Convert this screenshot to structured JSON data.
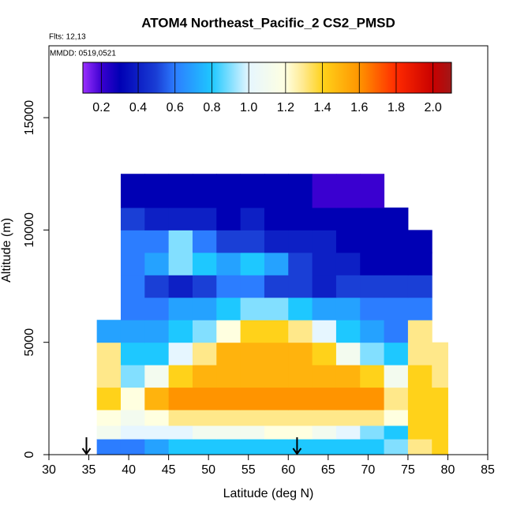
{
  "chart_data": {
    "type": "heatmap",
    "title": "ATOM4 Northeast_Pacific_2 CS2_PMSD",
    "subtitle": "Flts: 12,13",
    "annotation": "MMDD: 0519,0521",
    "x_label": "Latitude (deg N)",
    "y_label": "Altitude (m)",
    "xlim": [
      30,
      85
    ],
    "ylim": [
      0,
      18200
    ],
    "xticks": [
      30,
      35,
      40,
      45,
      50,
      55,
      60,
      65,
      70,
      75,
      80,
      85
    ],
    "yticks": [
      0,
      5000,
      10000,
      15000
    ],
    "x_bins": [
      36,
      39,
      42,
      45,
      48,
      51,
      54,
      57,
      60,
      63,
      66,
      69,
      72,
      75,
      78,
      80
    ],
    "y_bins": [
      0,
      700,
      1300,
      2000,
      3000,
      4000,
      5000,
      6000,
      7000,
      8000,
      9000,
      10000,
      11000,
      12500
    ],
    "values": [
      [
        0.6,
        0.6,
        0.7,
        0.8,
        0.8,
        0.8,
        0.8,
        0.8,
        0.8,
        0.8,
        0.8,
        0.8,
        0.9,
        1.3,
        1.4
      ],
      [
        1.1,
        1.0,
        1.0,
        1.0,
        1.1,
        1.1,
        1.1,
        1.2,
        1.2,
        1.1,
        1.0,
        0.9,
        0.8,
        1.4,
        1.4
      ],
      [
        1.2,
        1.1,
        1.2,
        1.3,
        1.3,
        1.3,
        1.3,
        1.3,
        1.3,
        1.3,
        1.3,
        1.3,
        1.2,
        1.4,
        1.4
      ],
      [
        1.4,
        1.2,
        1.5,
        1.6,
        1.6,
        1.6,
        1.6,
        1.6,
        1.6,
        1.6,
        1.6,
        1.6,
        1.3,
        1.4,
        1.4
      ],
      [
        1.3,
        0.9,
        1.1,
        1.4,
        1.5,
        1.5,
        1.5,
        1.5,
        1.5,
        1.5,
        1.5,
        1.4,
        1.1,
        1.4,
        1.3
      ],
      [
        1.3,
        0.8,
        0.8,
        1.0,
        1.3,
        1.5,
        1.5,
        1.5,
        1.5,
        1.4,
        1.1,
        0.9,
        0.8,
        1.3,
        1.3
      ],
      [
        0.7,
        0.7,
        0.7,
        0.8,
        0.9,
        1.2,
        1.4,
        1.4,
        1.3,
        1.0,
        0.8,
        0.7,
        0.6,
        1.3,
        null
      ],
      [
        null,
        0.6,
        0.6,
        0.7,
        0.7,
        0.8,
        0.9,
        0.9,
        0.8,
        0.7,
        0.7,
        0.6,
        0.6,
        0.6,
        null
      ],
      [
        null,
        0.6,
        0.5,
        0.4,
        0.5,
        0.6,
        0.6,
        0.5,
        0.5,
        0.4,
        0.5,
        0.5,
        0.5,
        0.5,
        null
      ],
      [
        null,
        0.6,
        0.7,
        0.9,
        0.8,
        0.7,
        0.8,
        0.7,
        0.5,
        0.4,
        0.4,
        0.3,
        0.3,
        0.3,
        null
      ],
      [
        null,
        0.6,
        0.6,
        0.9,
        0.6,
        0.5,
        0.5,
        0.4,
        0.4,
        0.4,
        0.3,
        0.3,
        0.3,
        0.3,
        null
      ],
      [
        null,
        0.5,
        0.4,
        0.4,
        0.4,
        0.3,
        0.4,
        0.3,
        0.3,
        0.3,
        0.3,
        0.3,
        0.3,
        null,
        null
      ],
      [
        null,
        0.3,
        0.3,
        0.3,
        0.3,
        0.3,
        0.3,
        0.3,
        0.3,
        0.2,
        0.2,
        0.2,
        null,
        null,
        null
      ]
    ],
    "arrows": [
      34.7,
      61.1
    ],
    "colorbar": {
      "lim": [
        0.1,
        2.1
      ],
      "ticks": [
        0.2,
        0.4,
        0.6,
        0.8,
        {
          "value": 1.0,
          "label": "1.0"
        },
        1.2,
        1.4,
        1.6,
        1.8,
        {
          "value": 2.0,
          "label": "2.0"
        }
      ],
      "stops": [
        [
          0.1,
          "#9b30ff"
        ],
        [
          0.2,
          "#3a00d0"
        ],
        [
          0.3,
          "#0000b4"
        ],
        [
          0.5,
          "#1a3fd6"
        ],
        [
          0.6,
          "#2c7dff"
        ],
        [
          0.8,
          "#1ec8ff"
        ],
        [
          1.0,
          "#e6f6ff"
        ],
        [
          1.2,
          "#ffffe0"
        ],
        [
          1.3,
          "#ffe88a"
        ],
        [
          1.4,
          "#ffd21a"
        ],
        [
          1.6,
          "#ff9400"
        ],
        [
          1.8,
          "#ff2a00"
        ],
        [
          2.0,
          "#c80000"
        ],
        [
          2.1,
          "#a01818"
        ]
      ]
    }
  }
}
